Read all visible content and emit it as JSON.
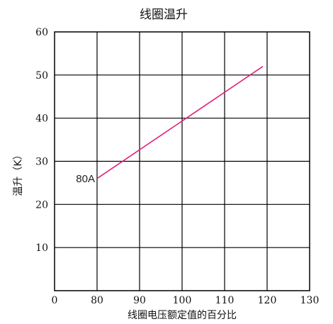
{
  "chart_data": {
    "type": "line",
    "title": "线圈温升",
    "xlabel": "线圈电压额定值的百分比",
    "ylabel": "温升（K）",
    "xlim": [
      70,
      130
    ],
    "ylim": [
      0,
      60
    ],
    "x_ticks": [
      "0",
      "80",
      "90",
      "100",
      "110",
      "120",
      "130"
    ],
    "y_ticks": [
      "10",
      "20",
      "30",
      "40",
      "50",
      "60"
    ],
    "grid": true,
    "series": [
      {
        "name": "80A",
        "color": "#e0207a",
        "x": [
          80,
          119
        ],
        "y": [
          26,
          52
        ]
      }
    ]
  }
}
